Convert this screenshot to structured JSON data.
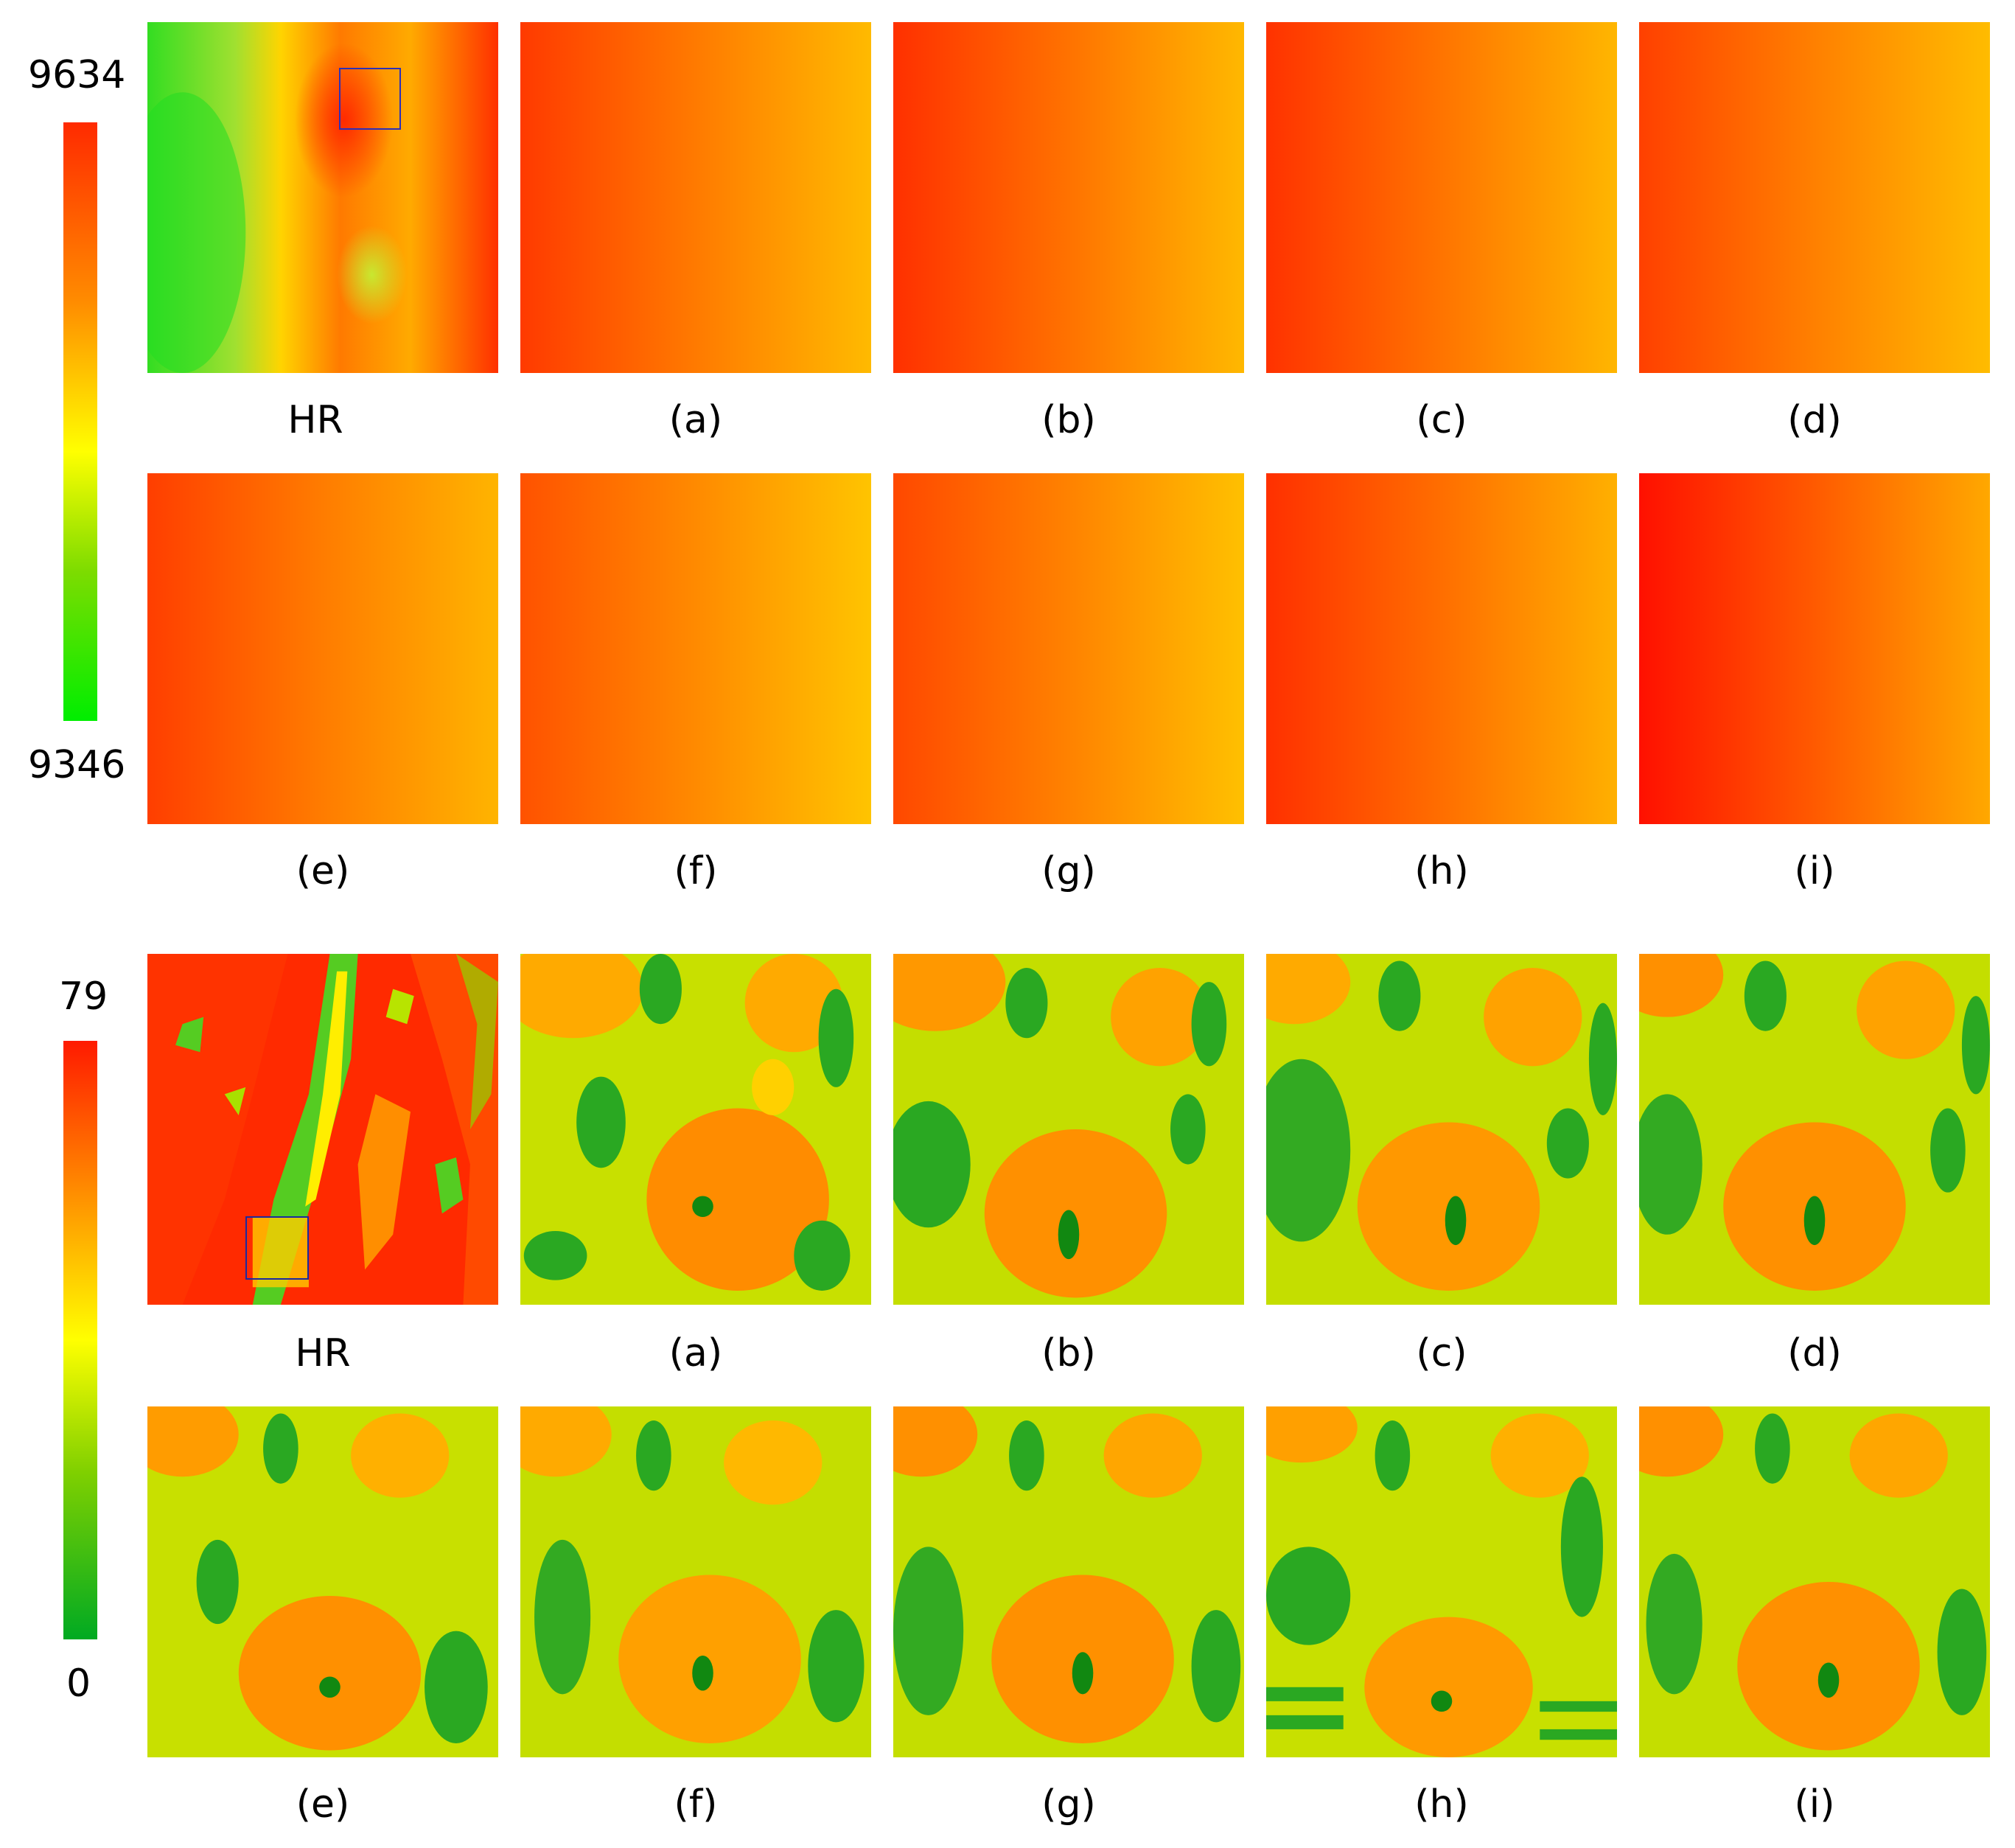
{
  "panel_top": {
    "colorbar": {
      "max_label": "9634",
      "min_label": "9346",
      "colors": [
        "#ff2a00",
        "#ff8c00",
        "#ffff00",
        "#7ddc00",
        "#00ee00"
      ]
    },
    "row1_captions": [
      "HR",
      "(a)",
      "(b)",
      "(c)",
      "(d)"
    ],
    "row2_captions": [
      "(e)",
      "(f)",
      "(g)",
      "(h)",
      "(i)"
    ]
  },
  "panel_bottom": {
    "colorbar": {
      "max_label": "79",
      "min_label": "0",
      "colors": [
        "#ff1a00",
        "#ff8c00",
        "#ffff00",
        "#80d000",
        "#00aa22"
      ]
    },
    "row1_captions": [
      "HR",
      "(a)",
      "(b)",
      "(c)",
      "(d)"
    ],
    "row2_captions": [
      "(e)",
      "(f)",
      "(g)",
      "(h)",
      "(i)"
    ]
  }
}
